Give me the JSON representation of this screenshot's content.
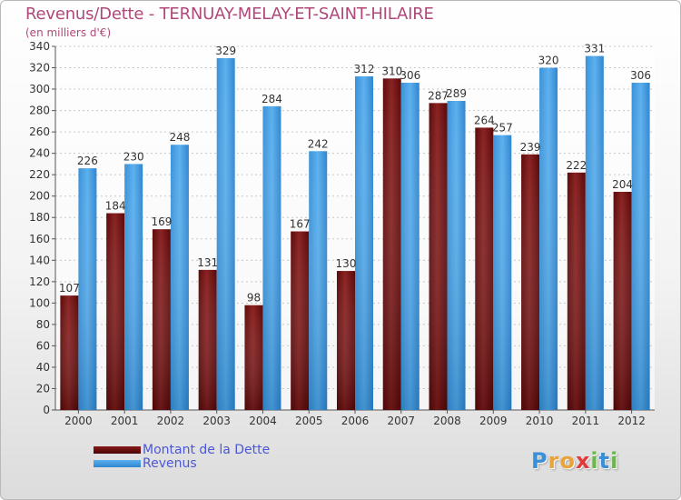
{
  "title": "Revenus/Dette - TERNUAY-MELAY-ET-SAINT-HILAIRE",
  "subtitle": "(en milliers d'€)",
  "logo": {
    "letters": [
      "P",
      "r",
      "o",
      "x",
      "i",
      "t",
      "i"
    ],
    "colors": [
      "#3a8fd8",
      "#e8a33b",
      "#e8a33b",
      "#e23a3a",
      "#6ab84a",
      "#3a8fd8",
      "#6ab84a"
    ]
  },
  "legend": [
    {
      "label": "Montant de la Dette",
      "color": "#6b0d0d"
    },
    {
      "label": "Revenus",
      "color": "#3d97dc"
    }
  ],
  "chart_data": {
    "type": "bar",
    "title": "Revenus/Dette - TERNUAY-MELAY-ET-SAINT-HILAIRE",
    "subtitle": "(en milliers d'€)",
    "categories": [
      "2000",
      "2001",
      "2002",
      "2003",
      "2004",
      "2005",
      "2006",
      "2007",
      "2008",
      "2009",
      "2010",
      "2011",
      "2012"
    ],
    "series": [
      {
        "name": "Montant de la Dette",
        "color": "#6b0d0d",
        "values": [
          107,
          184,
          169,
          131,
          98,
          167,
          130,
          310,
          287,
          264,
          239,
          222,
          204
        ]
      },
      {
        "name": "Revenus",
        "color": "#3d97dc",
        "values": [
          226,
          230,
          248,
          329,
          284,
          242,
          312,
          306,
          289,
          257,
          320,
          331,
          306
        ]
      }
    ],
    "ylim": [
      0,
      340
    ],
    "yticks": [
      0,
      20,
      40,
      60,
      80,
      100,
      120,
      140,
      160,
      180,
      200,
      220,
      240,
      260,
      280,
      300,
      320,
      340
    ],
    "grid": true,
    "legend_position": "bottom-left"
  }
}
